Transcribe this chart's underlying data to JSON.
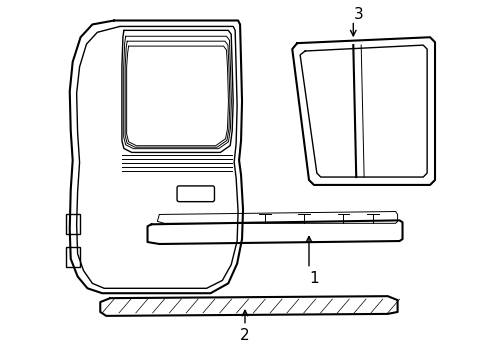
{
  "background_color": "#ffffff",
  "line_color": "#000000",
  "lw_main": 1.5,
  "lw_inner": 1.0,
  "lw_thin": 0.7,
  "fig_width": 4.89,
  "fig_height": 3.6,
  "dpi": 100
}
